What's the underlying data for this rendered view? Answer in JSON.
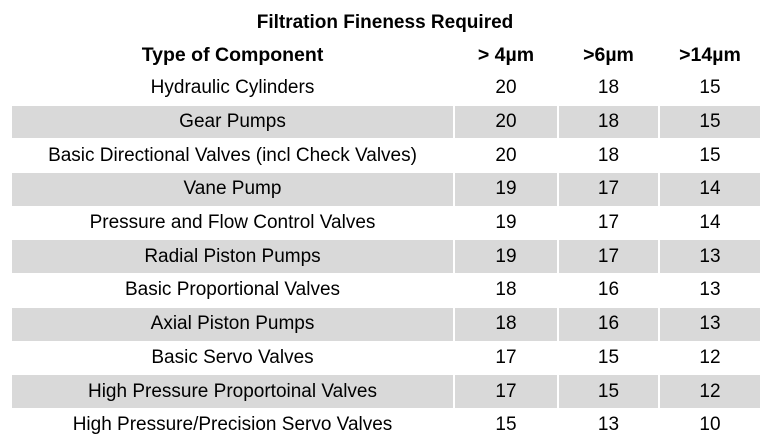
{
  "title": "Filtration Fineness Required",
  "columns": [
    "Type of Component",
    "> 4µm",
    ">6µm",
    ">14µm"
  ],
  "rows": [
    {
      "component": "Hydraulic Cylinders",
      "v1": "20",
      "v2": "18",
      "v3": "15"
    },
    {
      "component": "Gear Pumps",
      "v1": "20",
      "v2": "18",
      "v3": "15"
    },
    {
      "component": "Basic Directional Valves (incl Check Valves)",
      "v1": "20",
      "v2": "18",
      "v3": "15"
    },
    {
      "component": "Vane Pump",
      "v1": "19",
      "v2": "17",
      "v3": "14"
    },
    {
      "component": "Pressure and Flow Control Valves",
      "v1": "19",
      "v2": "17",
      "v3": "14"
    },
    {
      "component": "Radial Piston Pumps",
      "v1": "19",
      "v2": "17",
      "v3": "13"
    },
    {
      "component": "Basic Proportional Valves",
      "v1": "18",
      "v2": "16",
      "v3": "13"
    },
    {
      "component": "Axial Piston Pumps",
      "v1": "18",
      "v2": "16",
      "v3": "13"
    },
    {
      "component": "Basic Servo Valves",
      "v1": "17",
      "v2": "15",
      "v3": "12"
    },
    {
      "component": "High Pressure Proportoinal Valves",
      "v1": "17",
      "v2": "15",
      "v3": "12"
    },
    {
      "component": "High Pressure/Precision Servo Valves",
      "v1": "15",
      "v2": "13",
      "v3": "10"
    }
  ],
  "colors": {
    "stripe": "#d9d9d9",
    "background": "#ffffff"
  }
}
